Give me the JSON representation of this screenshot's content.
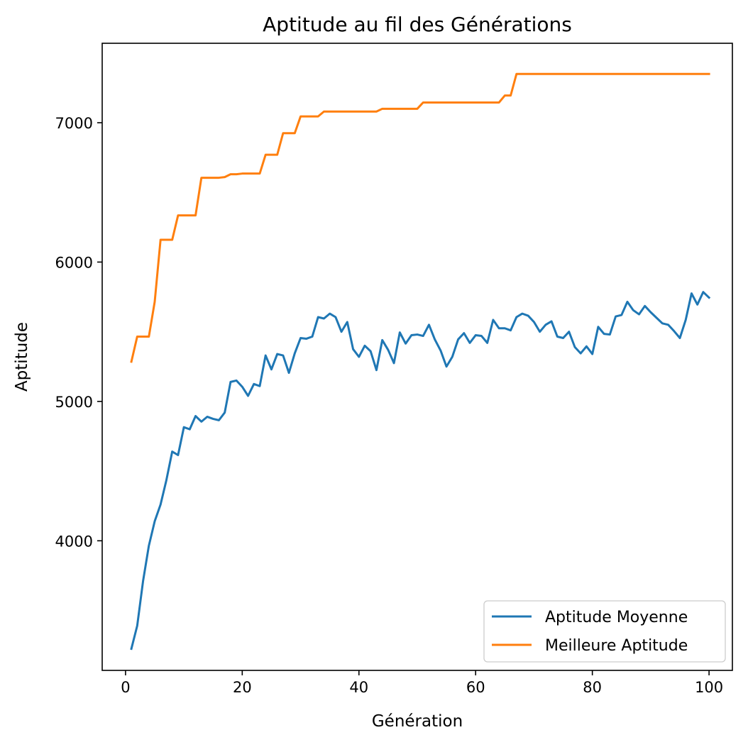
{
  "chart_data": {
    "type": "line",
    "title": "Aptitude au fil des Générations",
    "xlabel": "Génération",
    "ylabel": "Aptitude",
    "xlim": [
      -4,
      104
    ],
    "ylim": [
      3070,
      7570
    ],
    "xticks": [
      0,
      20,
      40,
      60,
      80,
      100
    ],
    "yticks": [
      4000,
      5000,
      6000,
      7000
    ],
    "grid": false,
    "legend_position": "lower-right",
    "x": [
      1,
      2,
      3,
      4,
      5,
      6,
      7,
      8,
      9,
      10,
      11,
      12,
      13,
      14,
      15,
      16,
      17,
      18,
      19,
      20,
      21,
      22,
      23,
      24,
      25,
      26,
      27,
      28,
      29,
      30,
      31,
      32,
      33,
      34,
      35,
      36,
      37,
      38,
      39,
      40,
      41,
      42,
      43,
      44,
      45,
      46,
      47,
      48,
      49,
      50,
      51,
      52,
      53,
      54,
      55,
      56,
      57,
      58,
      59,
      60,
      61,
      62,
      63,
      64,
      65,
      66,
      67,
      68,
      69,
      70,
      71,
      72,
      73,
      74,
      75,
      76,
      77,
      78,
      79,
      80,
      81,
      82,
      83,
      84,
      85,
      86,
      87,
      88,
      89,
      90,
      91,
      92,
      93,
      94,
      95,
      96,
      97,
      98,
      99,
      100
    ],
    "series": [
      {
        "name": "Aptitude Moyenne",
        "color": "#1f77b4",
        "values": [
          3225,
          3390,
          3710,
          3965,
          4140,
          4260,
          4435,
          4640,
          4615,
          4815,
          4800,
          4895,
          4855,
          4890,
          4875,
          4865,
          4920,
          5140,
          5150,
          5105,
          5040,
          5125,
          5110,
          5330,
          5230,
          5340,
          5330,
          5205,
          5345,
          5455,
          5450,
          5465,
          5605,
          5595,
          5630,
          5605,
          5500,
          5570,
          5375,
          5320,
          5400,
          5360,
          5225,
          5440,
          5370,
          5275,
          5495,
          5415,
          5475,
          5480,
          5470,
          5550,
          5445,
          5365,
          5250,
          5320,
          5445,
          5490,
          5420,
          5475,
          5470,
          5420,
          5585,
          5525,
          5525,
          5510,
          5605,
          5630,
          5615,
          5570,
          5500,
          5550,
          5575,
          5465,
          5455,
          5500,
          5390,
          5345,
          5395,
          5340,
          5535,
          5485,
          5480,
          5610,
          5620,
          5715,
          5655,
          5625,
          5685,
          5640,
          5600,
          5560,
          5550,
          5505,
          5455,
          5585,
          5775,
          5695,
          5785,
          5745
        ]
      },
      {
        "name": "Meilleure Aptitude",
        "color": "#ff7f0e",
        "values": [
          5285,
          5465,
          5465,
          5465,
          5715,
          6160,
          6160,
          6160,
          6335,
          6335,
          6335,
          6335,
          6605,
          6605,
          6605,
          6605,
          6610,
          6630,
          6630,
          6635,
          6635,
          6635,
          6635,
          6770,
          6770,
          6770,
          6925,
          6925,
          6925,
          7045,
          7045,
          7045,
          7045,
          7080,
          7080,
          7080,
          7080,
          7080,
          7080,
          7080,
          7080,
          7080,
          7080,
          7100,
          7100,
          7100,
          7100,
          7100,
          7100,
          7100,
          7145,
          7145,
          7145,
          7145,
          7145,
          7145,
          7145,
          7145,
          7145,
          7145,
          7145,
          7145,
          7145,
          7145,
          7195,
          7195,
          7350,
          7350,
          7350,
          7350,
          7350,
          7350,
          7350,
          7350,
          7350,
          7350,
          7350,
          7350,
          7350,
          7350,
          7350,
          7350,
          7350,
          7350,
          7350,
          7350,
          7350,
          7350,
          7350,
          7350,
          7350,
          7350,
          7350,
          7350,
          7350,
          7350,
          7350,
          7350,
          7350,
          7350
        ]
      }
    ]
  }
}
